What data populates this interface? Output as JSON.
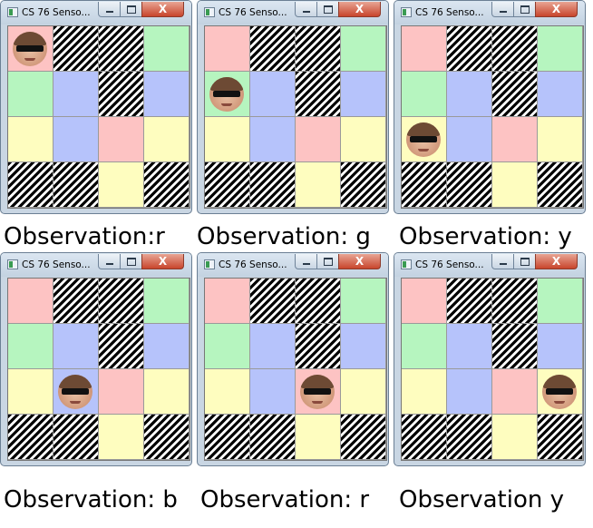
{
  "window_title": "CS 76 Senso...",
  "close_label": "X",
  "maze": [
    [
      "r",
      "w",
      "w",
      "g"
    ],
    [
      "g",
      "b",
      "w",
      "b"
    ],
    [
      "y",
      "b",
      "r",
      "y"
    ],
    [
      "w",
      "w",
      "y",
      "w"
    ]
  ],
  "panels": [
    {
      "robot": [
        0,
        0
      ],
      "observation": "Observation:r"
    },
    {
      "robot": [
        1,
        0
      ],
      "observation": "Observation: g"
    },
    {
      "robot": [
        2,
        0
      ],
      "observation": "Observation: y"
    },
    {
      "robot": [
        2,
        1
      ],
      "observation": "Observation: b"
    },
    {
      "robot": [
        2,
        2
      ],
      "observation": "Observation: r"
    },
    {
      "robot": [
        2,
        3
      ],
      "observation": "Observation y"
    }
  ],
  "colors": {
    "r": "#fdc3c3",
    "g": "#b6f5bf",
    "b": "#b6c3fb",
    "y": "#fefdbf",
    "wall": "#000000"
  },
  "icons": {
    "app": "app-icon",
    "minimize": "minimize-icon",
    "maximize": "maximize-icon",
    "close": "close-icon",
    "robot": "robot-face-icon"
  }
}
